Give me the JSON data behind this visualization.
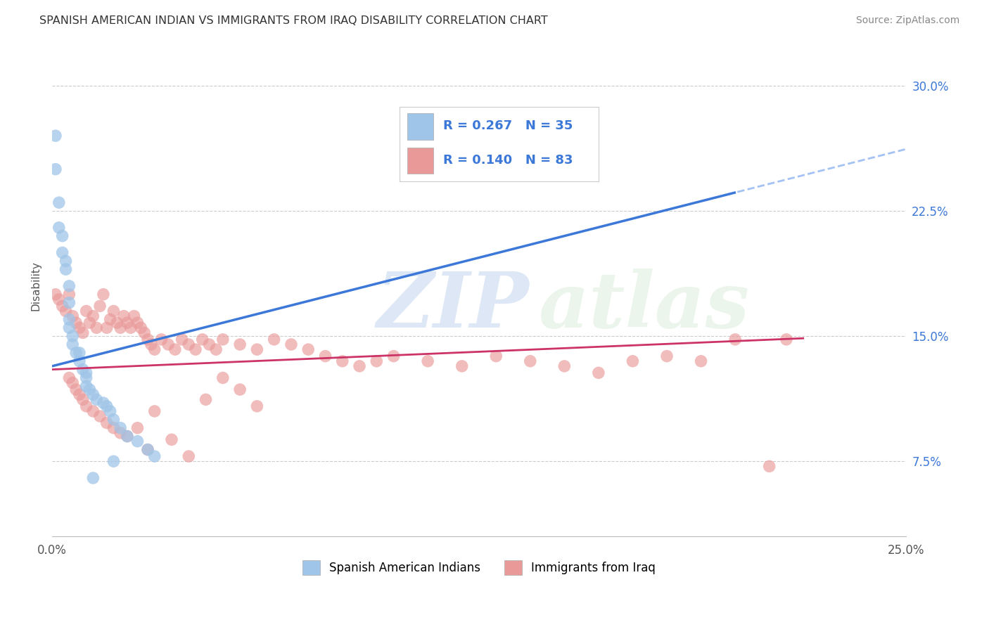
{
  "title": "SPANISH AMERICAN INDIAN VS IMMIGRANTS FROM IRAQ DISABILITY CORRELATION CHART",
  "source": "Source: ZipAtlas.com",
  "ylabel": "Disability",
  "yticks_pct": [
    7.5,
    15.0,
    22.5,
    30.0
  ],
  "ytick_labels": [
    "7.5%",
    "15.0%",
    "22.5%",
    "30.0%"
  ],
  "xlim": [
    0.0,
    0.25
  ],
  "ylim": [
    0.03,
    0.33
  ],
  "legend_r1": "R = 0.267",
  "legend_n1": "N = 35",
  "legend_r2": "R = 0.140",
  "legend_n2": "N = 83",
  "color_blue": "#9fc5e8",
  "color_pink": "#ea9999",
  "color_blue_line": "#3c78d8",
  "color_pink_line": "#cc3366",
  "color_dashed_line": "#a4c2f4",
  "watermark_zip": "ZIP",
  "watermark_atlas": "atlas",
  "legend_label1": "Spanish American Indians",
  "legend_label2": "Immigrants from Iraq",
  "blue_x": [
    0.001,
    0.001,
    0.002,
    0.002,
    0.003,
    0.003,
    0.004,
    0.004,
    0.005,
    0.005,
    0.005,
    0.005,
    0.006,
    0.006,
    0.007,
    0.008,
    0.008,
    0.009,
    0.01,
    0.01,
    0.01,
    0.011,
    0.012,
    0.013,
    0.015,
    0.016,
    0.017,
    0.018,
    0.02,
    0.022,
    0.025,
    0.028,
    0.03,
    0.018,
    0.012
  ],
  "blue_y": [
    0.27,
    0.25,
    0.23,
    0.215,
    0.21,
    0.2,
    0.195,
    0.19,
    0.18,
    0.17,
    0.16,
    0.155,
    0.15,
    0.145,
    0.14,
    0.14,
    0.135,
    0.13,
    0.128,
    0.125,
    0.12,
    0.118,
    0.115,
    0.112,
    0.11,
    0.108,
    0.105,
    0.1,
    0.095,
    0.09,
    0.087,
    0.082,
    0.078,
    0.075,
    0.065
  ],
  "pink_x": [
    0.001,
    0.002,
    0.003,
    0.004,
    0.005,
    0.006,
    0.007,
    0.008,
    0.009,
    0.01,
    0.011,
    0.012,
    0.013,
    0.014,
    0.015,
    0.016,
    0.017,
    0.018,
    0.019,
    0.02,
    0.021,
    0.022,
    0.023,
    0.024,
    0.025,
    0.026,
    0.027,
    0.028,
    0.029,
    0.03,
    0.032,
    0.034,
    0.036,
    0.038,
    0.04,
    0.042,
    0.044,
    0.046,
    0.048,
    0.05,
    0.055,
    0.06,
    0.065,
    0.07,
    0.075,
    0.08,
    0.085,
    0.09,
    0.095,
    0.1,
    0.11,
    0.12,
    0.13,
    0.14,
    0.15,
    0.16,
    0.17,
    0.18,
    0.19,
    0.2,
    0.005,
    0.006,
    0.007,
    0.008,
    0.009,
    0.01,
    0.012,
    0.014,
    0.016,
    0.018,
    0.02,
    0.022,
    0.025,
    0.028,
    0.03,
    0.035,
    0.04,
    0.045,
    0.05,
    0.055,
    0.06,
    0.215,
    0.21
  ],
  "pink_y": [
    0.175,
    0.172,
    0.168,
    0.165,
    0.175,
    0.162,
    0.158,
    0.155,
    0.152,
    0.165,
    0.158,
    0.162,
    0.155,
    0.168,
    0.175,
    0.155,
    0.16,
    0.165,
    0.158,
    0.155,
    0.162,
    0.158,
    0.155,
    0.162,
    0.158,
    0.155,
    0.152,
    0.148,
    0.145,
    0.142,
    0.148,
    0.145,
    0.142,
    0.148,
    0.145,
    0.142,
    0.148,
    0.145,
    0.142,
    0.148,
    0.145,
    0.142,
    0.148,
    0.145,
    0.142,
    0.138,
    0.135,
    0.132,
    0.135,
    0.138,
    0.135,
    0.132,
    0.138,
    0.135,
    0.132,
    0.128,
    0.135,
    0.138,
    0.135,
    0.148,
    0.125,
    0.122,
    0.118,
    0.115,
    0.112,
    0.108,
    0.105,
    0.102,
    0.098,
    0.095,
    0.092,
    0.09,
    0.095,
    0.082,
    0.105,
    0.088,
    0.078,
    0.112,
    0.125,
    0.118,
    0.108,
    0.148,
    0.072
  ]
}
